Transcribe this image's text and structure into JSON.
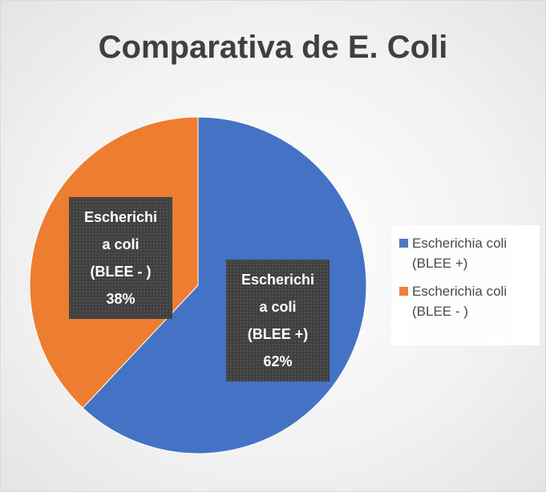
{
  "chart_data": {
    "type": "pie",
    "title": "Comparativa de E. Coli",
    "categories": [
      "Escherichia coli (BLEE +)",
      "Escherichia coli (BLEE - )"
    ],
    "values": [
      62,
      38
    ],
    "value_labels": [
      "62%",
      "38%"
    ],
    "colors": [
      "#4472c4",
      "#ed7d31"
    ],
    "legend": "right"
  }
}
